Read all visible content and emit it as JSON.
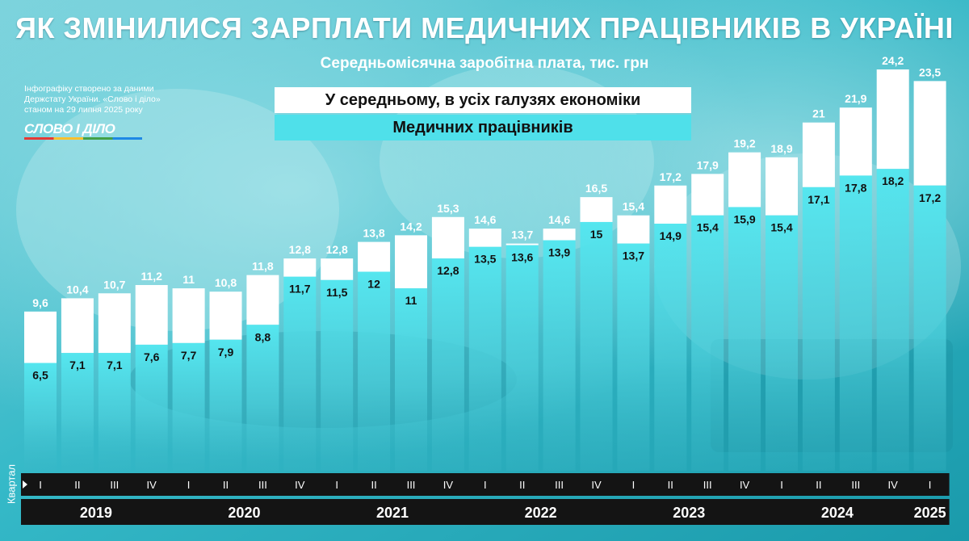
{
  "title": "ЯК ЗМІНИЛИСЯ ЗАРПЛАТИ МЕДИЧНИХ ПРАЦІВНИКІВ В УКРАЇНІ",
  "subtitle": "Середньомісячна заробітна плата, тис. грн",
  "source_note": "Інфографіку створено за даними Держстату України. «Слово і діло» станом на 29 липня 2025 року",
  "logo_text": "СЛОВО І ДІЛО",
  "colors": {
    "average": "#ffffff",
    "medical": "#4fe0ea",
    "year_bar": "#141414",
    "background": "#2fb8c6"
  },
  "chart_data": {
    "type": "bar",
    "xlabel": "Квартал",
    "ylabel": "",
    "ylim": [
      0,
      24.2
    ],
    "categories": [
      "I",
      "II",
      "III",
      "IV",
      "I",
      "II",
      "III",
      "IV",
      "I",
      "II",
      "III",
      "IV",
      "I",
      "II",
      "III",
      "IV",
      "I",
      "II",
      "III",
      "IV",
      "I",
      "II",
      "III",
      "IV",
      "I"
    ],
    "years": [
      {
        "label": "2019",
        "count": 4
      },
      {
        "label": "2020",
        "count": 4
      },
      {
        "label": "2021",
        "count": 4
      },
      {
        "label": "2022",
        "count": 4
      },
      {
        "label": "2023",
        "count": 4
      },
      {
        "label": "2024",
        "count": 4
      },
      {
        "label": "2025",
        "count": 1
      }
    ],
    "series": [
      {
        "name": "У середньому, в усіх галузях економіки",
        "values": [
          9.6,
          10.4,
          10.7,
          11.2,
          11,
          10.8,
          11.8,
          12.8,
          12.8,
          13.8,
          14.2,
          15.3,
          14.6,
          13.7,
          14.6,
          16.5,
          15.4,
          17.2,
          17.9,
          19.2,
          18.9,
          21,
          21.9,
          24.2,
          23.5
        ],
        "labels": [
          "9,6",
          "10,4",
          "10,7",
          "11,2",
          "11",
          "10,8",
          "11,8",
          "12,8",
          "12,8",
          "13,8",
          "14,2",
          "15,3",
          "14,6",
          "13,7",
          "14,6",
          "16,5",
          "15,4",
          "17,2",
          "17,9",
          "19,2",
          "18,9",
          "21",
          "21,9",
          "24,2",
          "23,5"
        ]
      },
      {
        "name": "Медичних працівників",
        "values": [
          6.5,
          7.1,
          7.1,
          7.6,
          7.7,
          7.9,
          8.8,
          11.7,
          11.5,
          12,
          11,
          12.8,
          13.5,
          13.6,
          13.9,
          15,
          13.7,
          14.9,
          15.4,
          15.9,
          15.4,
          17.1,
          17.8,
          18.2,
          17.2
        ],
        "labels": [
          "6,5",
          "7,1",
          "7,1",
          "7,6",
          "7,7",
          "7,9",
          "8,8",
          "11,7",
          "11,5",
          "12",
          "11",
          "12,8",
          "13,5",
          "13,6",
          "13,9",
          "15",
          "13,7",
          "14,9",
          "15,4",
          "15,9",
          "15,4",
          "17,1",
          "17,8",
          "18,2",
          "17,2"
        ]
      }
    ]
  }
}
